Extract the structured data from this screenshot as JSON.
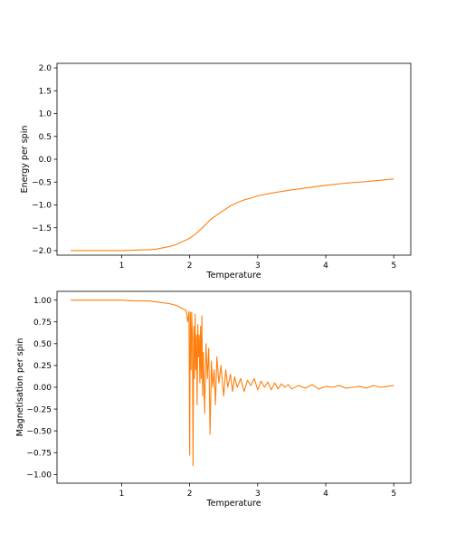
{
  "chart_data": [
    {
      "type": "line",
      "xlabel": "Temperature",
      "ylabel": "Energy per spin",
      "xlim": [
        0.05,
        5.25
      ],
      "ylim": [
        -2.1,
        2.1
      ],
      "xticks": [
        1,
        2,
        3,
        4,
        5
      ],
      "xtick_labels": [
        "1",
        "2",
        "3",
        "4",
        "5"
      ],
      "yticks": [
        2.0,
        1.5,
        1.0,
        0.5,
        0.0,
        -0.5,
        -1.0,
        -1.5,
        -2.0
      ],
      "ytick_labels": [
        "2.0",
        "1.5",
        "1.0",
        "0.5",
        "0.0",
        "−0.5",
        "−1.0",
        "−1.5",
        "−2.0"
      ],
      "color": "#ff7f0e",
      "x": [
        0.25,
        0.5,
        0.75,
        1.0,
        1.2,
        1.4,
        1.5,
        1.6,
        1.7,
        1.8,
        1.9,
        2.0,
        2.1,
        2.2,
        2.3,
        2.4,
        2.5,
        2.6,
        2.7,
        2.8,
        2.9,
        3.0,
        3.25,
        3.5,
        3.75,
        4.0,
        4.25,
        4.5,
        4.75,
        5.0
      ],
      "y": [
        -2.0,
        -2.0,
        -2.0,
        -2.0,
        -1.99,
        -1.98,
        -1.97,
        -1.94,
        -1.91,
        -1.87,
        -1.8,
        -1.73,
        -1.62,
        -1.48,
        -1.33,
        -1.22,
        -1.12,
        -1.02,
        -0.95,
        -0.89,
        -0.85,
        -0.8,
        -0.73,
        -0.67,
        -0.62,
        -0.57,
        -0.53,
        -0.5,
        -0.47,
        -0.43
      ]
    },
    {
      "type": "line",
      "xlabel": "Temperature",
      "ylabel": "Magnetisation per spin",
      "xlim": [
        0.05,
        5.25
      ],
      "ylim": [
        -1.1,
        1.1
      ],
      "xticks": [
        1,
        2,
        3,
        4,
        5
      ],
      "xtick_labels": [
        "1",
        "2",
        "3",
        "4",
        "5"
      ],
      "yticks": [
        1.0,
        0.75,
        0.5,
        0.25,
        0.0,
        -0.25,
        -0.5,
        -0.75,
        -1.0
      ],
      "ytick_labels": [
        "1.00",
        "0.75",
        "0.50",
        "0.25",
        "0.00",
        "−0.25",
        "−0.50",
        "−0.75",
        "−1.00"
      ],
      "color": "#ff7f0e",
      "x": [
        0.25,
        0.5,
        0.75,
        1.0,
        1.2,
        1.4,
        1.5,
        1.6,
        1.7,
        1.8,
        1.85,
        1.9,
        1.95,
        1.97,
        1.99,
        2.0,
        2.01,
        2.02,
        2.03,
        2.04,
        2.05,
        2.06,
        2.07,
        2.08,
        2.09,
        2.1,
        2.11,
        2.12,
        2.13,
        2.14,
        2.15,
        2.16,
        2.17,
        2.18,
        2.19,
        2.2,
        2.22,
        2.24,
        2.26,
        2.28,
        2.3,
        2.32,
        2.34,
        2.36,
        2.38,
        2.4,
        2.43,
        2.46,
        2.5,
        2.53,
        2.56,
        2.6,
        2.63,
        2.66,
        2.7,
        2.75,
        2.8,
        2.85,
        2.9,
        2.95,
        3.0,
        3.05,
        3.1,
        3.15,
        3.2,
        3.25,
        3.3,
        3.35,
        3.4,
        3.45,
        3.5,
        3.6,
        3.7,
        3.8,
        3.9,
        4.0,
        4.1,
        4.2,
        4.3,
        4.4,
        4.5,
        4.6,
        4.7,
        4.8,
        4.9,
        5.0
      ],
      "y": [
        1.0,
        1.0,
        1.0,
        1.0,
        0.99,
        0.99,
        0.98,
        0.97,
        0.96,
        0.94,
        0.92,
        0.9,
        0.88,
        0.75,
        0.87,
        -0.78,
        0.86,
        0.2,
        0.86,
        0.55,
        -0.9,
        0.7,
        0.1,
        0.84,
        0.2,
        0.6,
        -0.2,
        0.72,
        0.35,
        0.6,
        0.05,
        0.7,
        0.1,
        0.82,
        -0.1,
        0.4,
        -0.3,
        0.5,
        0.1,
        0.45,
        -0.54,
        0.3,
        0.0,
        0.2,
        -0.2,
        0.35,
        0.05,
        0.25,
        -0.1,
        0.2,
        0.0,
        0.15,
        -0.05,
        0.12,
        0.0,
        0.1,
        -0.05,
        0.08,
        0.02,
        0.1,
        -0.03,
        0.07,
        0.0,
        0.06,
        -0.03,
        0.05,
        -0.02,
        0.04,
        0.0,
        0.03,
        -0.02,
        0.02,
        -0.01,
        0.03,
        -0.02,
        0.01,
        0.0,
        0.02,
        -0.01,
        0.0,
        0.01,
        -0.01,
        0.02,
        0.0,
        0.01,
        0.02
      ]
    }
  ]
}
